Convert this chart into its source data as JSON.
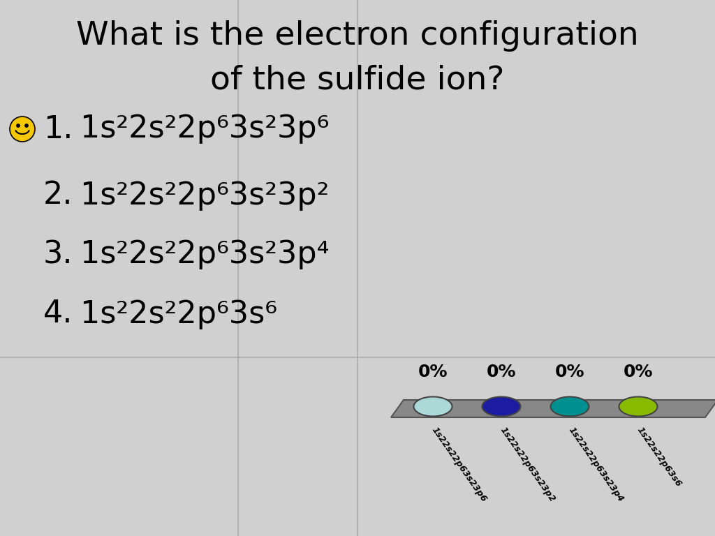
{
  "title_line1": "What is the electron configuration",
  "title_line2": "of the sulfide ion?",
  "background_color": "#d0d0d0",
  "grid_color": "#aaaaaa",
  "title_fontsize": 34,
  "option_fontsize": 32,
  "option_texts": [
    "1s²2s²2p⁶​3s²3p⁶",
    "1s²2s²2p⁶​3s²3p²",
    "1s²2s²2p⁶​3s²3p⁴",
    "1s²2s²2p⁶​3s⁶"
  ],
  "option_nums": [
    "1.",
    "2.",
    "3.",
    "4."
  ],
  "poll_colors": [
    "#add8d8",
    "#1c1ca0",
    "#009090",
    "#88bb00"
  ],
  "poll_labels": [
    "1s22s22p63s23p6",
    "1s22s22p63s23p2",
    "1s22s22p63s23p4",
    "1s22s22p63s6"
  ],
  "poll_percentages": [
    "0%",
    "0%",
    "0%",
    "0%"
  ],
  "smiley_color": "#f5c800",
  "poll_pct_fontsize": 18,
  "poll_label_fontsize": 9
}
